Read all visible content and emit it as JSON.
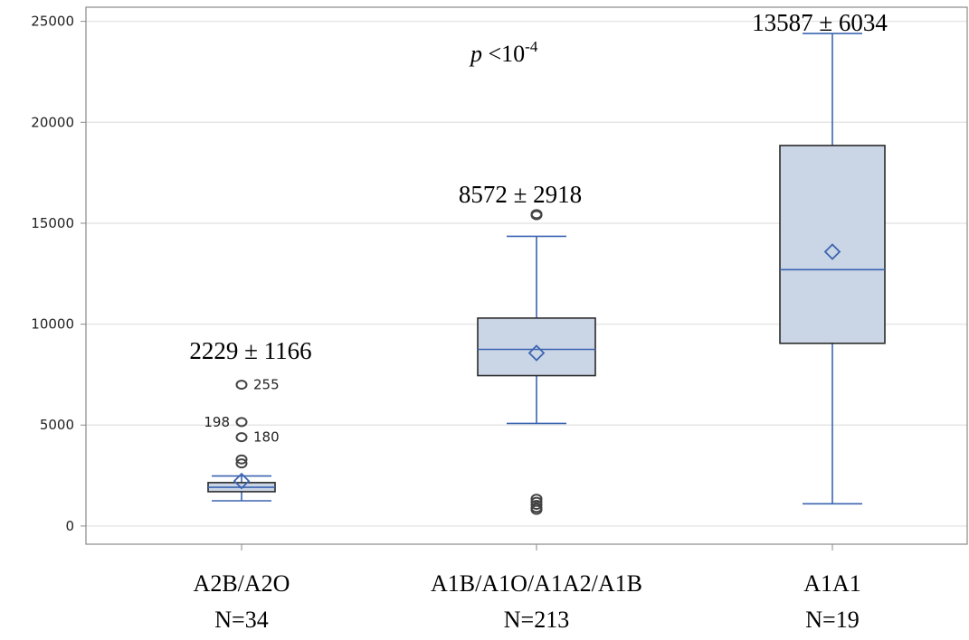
{
  "chart_data": {
    "type": "box",
    "ylim": [
      -900,
      25700
    ],
    "yticks": [
      0,
      5000,
      10000,
      15000,
      20000,
      25000
    ],
    "grid": true,
    "colors": {
      "box_fill": "#cad5e6",
      "box_edge": "#2a2a2a",
      "accent": "#3b64b0",
      "outlier": "#444444",
      "grid": "#e6e6e6"
    },
    "categories": [
      {
        "label": "A2B/A2O",
        "n_label": "N=34",
        "stat_label": "2229 ± 1166",
        "mean": 2229,
        "median": 1920,
        "q1": 1700,
        "q3": 2150,
        "whisker_low": 1250,
        "whisker_high": 2480,
        "outliers": [
          {
            "y": 7000,
            "label": "255",
            "label_side": "right"
          },
          {
            "y": 5150,
            "label": "198",
            "label_side": "left"
          },
          {
            "y": 4400,
            "label": "180",
            "label_side": "right"
          },
          {
            "y": 3300,
            "label": ""
          },
          {
            "y": 3100,
            "label": ""
          }
        ]
      },
      {
        "label": "A1B/A1O/A1A2/A1B",
        "n_label": "N=213",
        "stat_label": "8572 ± 2918",
        "mean": 8572,
        "median": 8750,
        "q1": 7450,
        "q3": 10300,
        "whisker_low": 5080,
        "whisker_high": 14350,
        "outliers": [
          {
            "y": 15450,
            "label": ""
          },
          {
            "y": 15400,
            "label": ""
          },
          {
            "y": 1350,
            "label": ""
          },
          {
            "y": 1200,
            "label": ""
          },
          {
            "y": 1050,
            "label": ""
          },
          {
            "y": 900,
            "label": ""
          },
          {
            "y": 800,
            "label": ""
          }
        ]
      },
      {
        "label": "A1A1",
        "n_label": "N=19",
        "stat_label": "13587 ± 6034",
        "mean": 13587,
        "median": 12700,
        "q1": 9050,
        "q3": 18850,
        "whisker_low": 1100,
        "whisker_high": 24400,
        "outliers": []
      }
    ],
    "annotation": {
      "p_italic": "p",
      "p_rest": " <10",
      "p_exp": "-4"
    }
  }
}
